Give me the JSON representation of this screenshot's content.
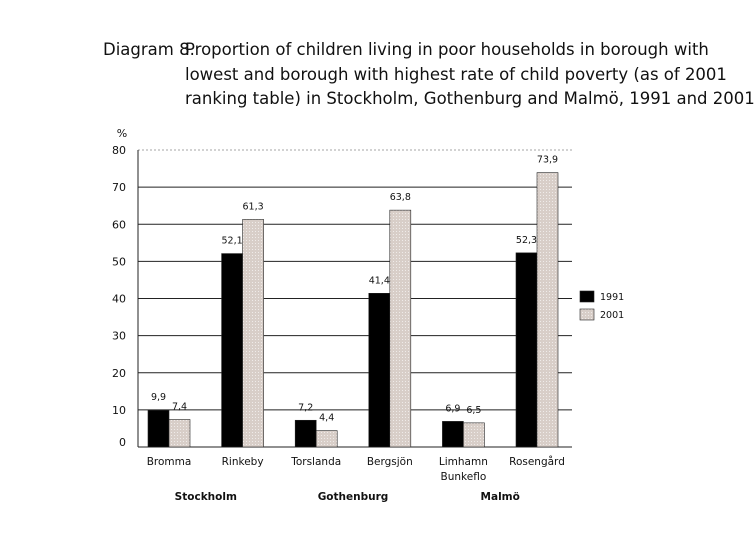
{
  "title": {
    "prefix": "Diagram 8.",
    "line1": "Proportion of children living in poor households in borough with",
    "line2": "lowest and borough with highest rate of child poverty (as of 2001",
    "line3": "ranking table) in Stockholm, Gothenburg and Malmö, 1991 and 2001"
  },
  "chart_data": {
    "type": "bar",
    "unit_label": "%",
    "ylim": [
      0,
      80
    ],
    "yticks": [
      0,
      10,
      20,
      30,
      40,
      50,
      60,
      70,
      80
    ],
    "categories": [
      "Bromma",
      "Rinkeby",
      "Torslanda",
      "Bergsjön",
      "Limhamn Bunkeflo",
      "Rosengård"
    ],
    "category_lines": [
      [
        "Bromma"
      ],
      [
        "Rinkeby"
      ],
      [
        "Torslanda"
      ],
      [
        "Bergsjön"
      ],
      [
        "Limhamn",
        "Bunkeflo"
      ],
      [
        "Rosengård"
      ]
    ],
    "groups": [
      {
        "name": "Stockholm",
        "categories": [
          "Bromma",
          "Rinkeby"
        ]
      },
      {
        "name": "Gothenburg",
        "categories": [
          "Torslanda",
          "Bergsjön"
        ]
      },
      {
        "name": "Malmö",
        "categories": [
          "Limhamn Bunkeflo",
          "Rosengård"
        ]
      }
    ],
    "series": [
      {
        "name": "1991",
        "color": "#000000",
        "values": [
          9.9,
          52.1,
          7.2,
          41.4,
          6.9,
          52.3
        ],
        "labels": [
          "9,9",
          "52,1",
          "7,2",
          "41,4",
          "6,9",
          "52,3"
        ]
      },
      {
        "name": "2001",
        "color": "#d6ccc6",
        "values": [
          7.4,
          61.3,
          4.4,
          63.8,
          6.5,
          73.9
        ],
        "labels": [
          "7,4",
          "61,3",
          "4,4",
          "63,8",
          "6,5",
          "73,9"
        ]
      }
    ],
    "legend_position": "right",
    "grid": true
  }
}
